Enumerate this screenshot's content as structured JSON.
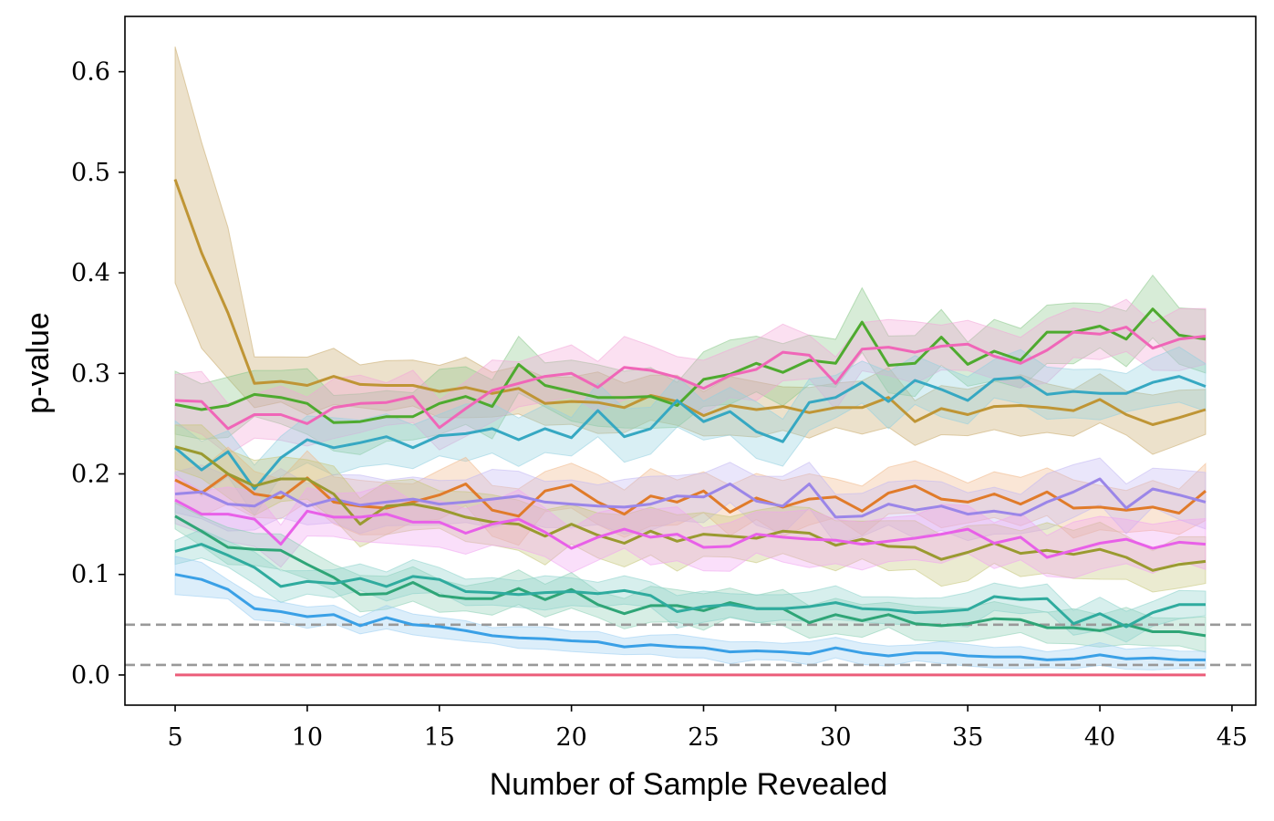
{
  "chart_data": {
    "type": "line",
    "title": "",
    "xlabel": "Number of Sample Revealed",
    "ylabel": "p-value",
    "xlim": [
      3.1,
      45.9
    ],
    "ylim": [
      -0.03,
      0.655
    ],
    "xticks": [
      5,
      10,
      15,
      20,
      25,
      30,
      35,
      40,
      45
    ],
    "yticks": [
      0.0,
      0.1,
      0.2,
      0.3,
      0.4,
      0.5,
      0.6
    ],
    "ytick_labels": [
      "0.0",
      "0.1",
      "0.2",
      "0.3",
      "0.4",
      "0.5",
      "0.6"
    ],
    "grid": false,
    "legend": "none",
    "reference_lines": [
      {
        "y": 0.05,
        "style": "dashed",
        "color": "#999999"
      },
      {
        "y": 0.01,
        "style": "dashed",
        "color": "#999999"
      }
    ],
    "x": [
      5,
      6,
      7,
      8,
      9,
      10,
      11,
      12,
      13,
      14,
      15,
      16,
      17,
      18,
      19,
      20,
      21,
      22,
      23,
      24,
      25,
      26,
      27,
      28,
      29,
      30,
      31,
      32,
      33,
      34,
      35,
      36,
      37,
      38,
      39,
      40,
      41,
      42,
      43,
      44
    ],
    "series": [
      {
        "color": "#bf9535",
        "band_color": "#c9a96a",
        "band": 0.025,
        "band_upper_start": [
          0.625,
          0.53,
          0.445
        ],
        "band_lower_start": [
          0.39,
          0.325,
          0.295
        ],
        "values": [
          0.493,
          0.42,
          0.36,
          0.29,
          0.292,
          0.288,
          0.297,
          0.289,
          0.288,
          0.288,
          0.282,
          0.286,
          0.28,
          0.285,
          0.27,
          0.272,
          0.271,
          0.266,
          0.278,
          0.272,
          0.258,
          0.268,
          0.264,
          0.267,
          0.261,
          0.266,
          0.266,
          0.276,
          0.252,
          0.265,
          0.259,
          0.267,
          0.268,
          0.266,
          0.263,
          0.274,
          0.259,
          0.249,
          0.256,
          0.264
        ]
      },
      {
        "color": "#4eaa2f",
        "band_color": "#8bc88b",
        "band": 0.028,
        "values": [
          0.269,
          0.264,
          0.268,
          0.279,
          0.276,
          0.27,
          0.251,
          0.252,
          0.257,
          0.257,
          0.27,
          0.277,
          0.267,
          0.309,
          0.288,
          0.282,
          0.276,
          0.276,
          0.277,
          0.268,
          0.294,
          0.299,
          0.31,
          0.301,
          0.313,
          0.31,
          0.351,
          0.308,
          0.31,
          0.336,
          0.309,
          0.322,
          0.313,
          0.341,
          0.341,
          0.347,
          0.334,
          0.364,
          0.338,
          0.334
        ]
      },
      {
        "color": "#f066b8",
        "band_color": "#f3a6d8",
        "band": 0.026,
        "values": [
          0.273,
          0.272,
          0.245,
          0.259,
          0.259,
          0.25,
          0.266,
          0.27,
          0.271,
          0.277,
          0.246,
          0.265,
          0.283,
          0.29,
          0.297,
          0.3,
          0.286,
          0.306,
          0.303,
          0.296,
          0.285,
          0.298,
          0.304,
          0.321,
          0.318,
          0.29,
          0.324,
          0.326,
          0.321,
          0.327,
          0.329,
          0.317,
          0.31,
          0.323,
          0.341,
          0.339,
          0.346,
          0.325,
          0.334,
          0.337
        ]
      },
      {
        "color": "#36a8c2",
        "band_color": "#93d0e0",
        "band": 0.024,
        "values": [
          0.226,
          0.204,
          0.222,
          0.185,
          0.216,
          0.234,
          0.226,
          0.231,
          0.237,
          0.226,
          0.238,
          0.24,
          0.245,
          0.234,
          0.245,
          0.236,
          0.263,
          0.237,
          0.245,
          0.273,
          0.252,
          0.262,
          0.242,
          0.232,
          0.271,
          0.276,
          0.291,
          0.272,
          0.293,
          0.284,
          0.273,
          0.294,
          0.296,
          0.279,
          0.282,
          0.28,
          0.28,
          0.291,
          0.297,
          0.287
        ]
      },
      {
        "color": "#e07b2a",
        "band_color": "#f0b88a",
        "band": 0.024,
        "values": [
          0.194,
          0.181,
          0.2,
          0.18,
          0.176,
          0.196,
          0.172,
          0.168,
          0.166,
          0.172,
          0.179,
          0.19,
          0.164,
          0.158,
          0.183,
          0.189,
          0.172,
          0.16,
          0.178,
          0.172,
          0.183,
          0.162,
          0.176,
          0.167,
          0.175,
          0.177,
          0.163,
          0.181,
          0.188,
          0.175,
          0.172,
          0.18,
          0.17,
          0.182,
          0.166,
          0.167,
          0.164,
          0.167,
          0.161,
          0.183
        ]
      },
      {
        "color": "#9b86e8",
        "band_color": "#c3b8f3",
        "band": 0.024,
        "values": [
          0.18,
          0.182,
          0.17,
          0.168,
          0.182,
          0.168,
          0.175,
          0.169,
          0.172,
          0.175,
          0.17,
          0.172,
          0.175,
          0.178,
          0.172,
          0.17,
          0.168,
          0.167,
          0.17,
          0.178,
          0.177,
          0.19,
          0.173,
          0.168,
          0.19,
          0.157,
          0.158,
          0.17,
          0.164,
          0.168,
          0.16,
          0.163,
          0.159,
          0.172,
          0.182,
          0.195,
          0.166,
          0.185,
          0.179,
          0.172
        ]
      },
      {
        "color": "#9a9a30",
        "band_color": "#c6c67a",
        "band": 0.024,
        "values": [
          0.227,
          0.22,
          0.2,
          0.188,
          0.195,
          0.195,
          0.18,
          0.15,
          0.168,
          0.17,
          0.165,
          0.157,
          0.152,
          0.15,
          0.138,
          0.15,
          0.139,
          0.131,
          0.143,
          0.133,
          0.14,
          0.138,
          0.136,
          0.143,
          0.141,
          0.129,
          0.135,
          0.128,
          0.127,
          0.115,
          0.122,
          0.131,
          0.121,
          0.124,
          0.12,
          0.125,
          0.117,
          0.104,
          0.11,
          0.113
        ]
      },
      {
        "color": "#e860e8",
        "band_color": "#f0a4f0",
        "band": 0.024,
        "values": [
          0.174,
          0.16,
          0.16,
          0.155,
          0.13,
          0.163,
          0.157,
          0.157,
          0.16,
          0.152,
          0.152,
          0.141,
          0.15,
          0.155,
          0.142,
          0.126,
          0.137,
          0.145,
          0.137,
          0.14,
          0.127,
          0.128,
          0.14,
          0.137,
          0.135,
          0.134,
          0.13,
          0.133,
          0.136,
          0.14,
          0.145,
          0.131,
          0.137,
          0.117,
          0.124,
          0.131,
          0.135,
          0.126,
          0.132,
          0.13
        ]
      },
      {
        "color": "#2fa577",
        "band_color": "#8bcfb4",
        "band": 0.016,
        "values": [
          0.158,
          0.143,
          0.127,
          0.125,
          0.124,
          0.11,
          0.097,
          0.08,
          0.081,
          0.092,
          0.079,
          0.076,
          0.076,
          0.086,
          0.075,
          0.085,
          0.07,
          0.061,
          0.069,
          0.069,
          0.064,
          0.072,
          0.066,
          0.066,
          0.052,
          0.06,
          0.054,
          0.06,
          0.051,
          0.049,
          0.051,
          0.056,
          0.055,
          0.047,
          0.047,
          0.044,
          0.05,
          0.043,
          0.043,
          0.039
        ]
      },
      {
        "color": "#2fab9e",
        "band_color": "#8bd2ca",
        "band": 0.014,
        "values": [
          0.123,
          0.13,
          0.119,
          0.107,
          0.088,
          0.093,
          0.091,
          0.096,
          0.088,
          0.098,
          0.095,
          0.083,
          0.082,
          0.08,
          0.082,
          0.083,
          0.081,
          0.084,
          0.079,
          0.063,
          0.068,
          0.07,
          0.066,
          0.066,
          0.068,
          0.072,
          0.066,
          0.065,
          0.062,
          0.063,
          0.065,
          0.078,
          0.075,
          0.076,
          0.051,
          0.061,
          0.048,
          0.062,
          0.07,
          0.07
        ]
      },
      {
        "color": "#3aa0e6",
        "band_color": "#9acdf2",
        "band": 0.01,
        "band_upper_start": [
          0.118,
          0.112
        ],
        "band_lower_start": [
          0.08,
          0.078
        ],
        "values": [
          0.1,
          0.095,
          0.085,
          0.066,
          0.063,
          0.058,
          0.06,
          0.049,
          0.057,
          0.05,
          0.048,
          0.044,
          0.039,
          0.037,
          0.036,
          0.034,
          0.033,
          0.028,
          0.03,
          0.028,
          0.027,
          0.023,
          0.024,
          0.023,
          0.021,
          0.027,
          0.022,
          0.019,
          0.022,
          0.022,
          0.019,
          0.018,
          0.018,
          0.015,
          0.016,
          0.02,
          0.016,
          0.017,
          0.015,
          0.015
        ]
      },
      {
        "color": "#ec5d7a",
        "band_color": "#f4a6b6",
        "band": 0.0,
        "values": [
          0,
          0,
          0,
          0,
          0,
          0,
          0,
          0,
          0,
          0,
          0,
          0,
          0,
          0,
          0,
          0,
          0,
          0,
          0,
          0,
          0,
          0,
          0,
          0,
          0,
          0,
          0,
          0,
          0,
          0,
          0,
          0,
          0,
          0,
          0,
          0,
          0,
          0,
          0,
          0
        ]
      }
    ]
  }
}
